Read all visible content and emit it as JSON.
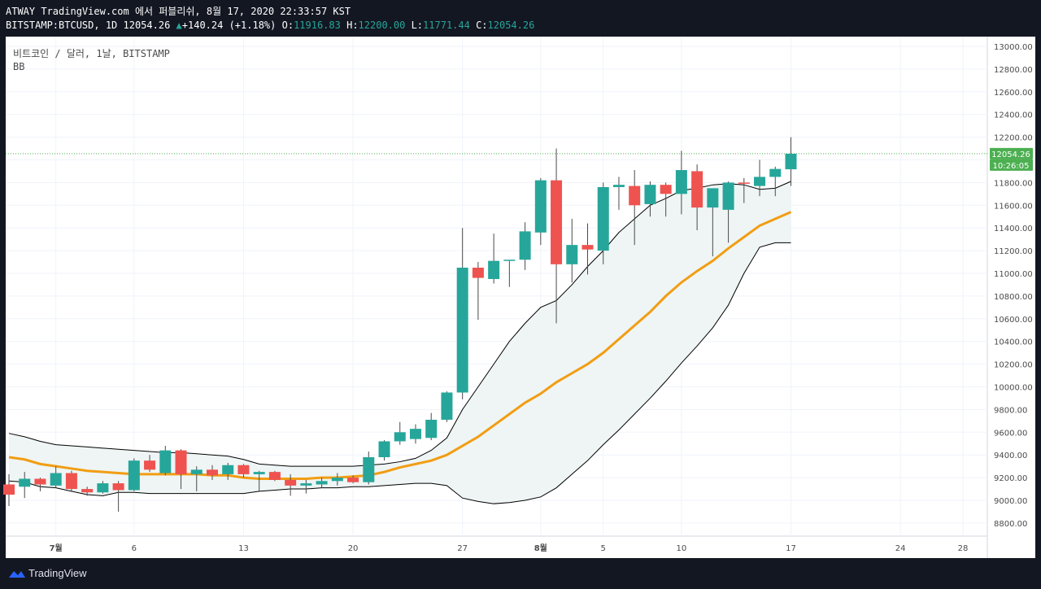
{
  "header": {
    "line1": "ATWAY TradingView.com 에서 퍼블리쉬, 8월 17, 2020 22:33:57 KST",
    "symbol": "BITSTAMP:BTCUSD, 1D",
    "price": "12054.26",
    "change": "+140.24 (+1.18%)",
    "o_label": "O:",
    "o_value": "11916.83",
    "h_label": "H:",
    "h_value": "12200.00",
    "l_label": "L:",
    "l_value": "11771.44",
    "c_label": "C:",
    "c_value": "12054.26"
  },
  "legend": {
    "title": "비트코인 / 달러, 1날, BITSTAMP",
    "indicator": "BB"
  },
  "footer": {
    "brand": "TradingView"
  },
  "colors": {
    "up": "#26a69a",
    "down": "#ef5350",
    "basis": "#f29d13",
    "band": "#000000",
    "fill": "#eef5f4",
    "price_tag": "#4caf50"
  },
  "chart_data": {
    "type": "candlestick",
    "title": "비트코인 / 달러, 1날, BITSTAMP",
    "y_range": [
      8700,
      13100
    ],
    "y_ticks": [
      "13000.00",
      "12800.00",
      "12600.00",
      "12400.00",
      "12200.00",
      "12000.00",
      "11800.00",
      "11600.00",
      "11400.00",
      "11200.00",
      "11000.00",
      "10800.00",
      "10600.00",
      "10400.00",
      "10200.00",
      "10000.00",
      "9800.00",
      "9600.00",
      "9400.00",
      "9200.00",
      "9000.00",
      "8800.00"
    ],
    "x_ticks": [
      {
        "label": "7월",
        "bar": 3.0,
        "bold": true
      },
      {
        "label": "6",
        "bar": 8
      },
      {
        "label": "13",
        "bar": 15
      },
      {
        "label": "20",
        "bar": 22
      },
      {
        "label": "27",
        "bar": 29
      },
      {
        "label": "8월",
        "bar": 34.0,
        "bold": true
      },
      {
        "label": "5",
        "bar": 38
      },
      {
        "label": "10",
        "bar": 43
      },
      {
        "label": "17",
        "bar": 50
      },
      {
        "label": "24",
        "bar": 57
      },
      {
        "label": "28",
        "bar": 61
      }
    ],
    "price_tag": "12054.26",
    "countdown": "10:26:05",
    "candles": [
      [
        9140,
        9230,
        8950,
        9050
      ],
      [
        9120,
        9250,
        9020,
        9190
      ],
      [
        9190,
        9200,
        9080,
        9140
      ],
      [
        9130,
        9300,
        9110,
        9240
      ],
      [
        9240,
        9260,
        9080,
        9100
      ],
      [
        9100,
        9120,
        9040,
        9070
      ],
      [
        9070,
        9170,
        9060,
        9150
      ],
      [
        9150,
        9170,
        8900,
        9090
      ],
      [
        9090,
        9370,
        9080,
        9350
      ],
      [
        9350,
        9400,
        9250,
        9270
      ],
      [
        9240,
        9480,
        9220,
        9440
      ],
      [
        9440,
        9450,
        9100,
        9230
      ],
      [
        9230,
        9300,
        9080,
        9270
      ],
      [
        9270,
        9310,
        9180,
        9220
      ],
      [
        9230,
        9330,
        9180,
        9310
      ],
      [
        9310,
        9320,
        9200,
        9230
      ],
      [
        9230,
        9260,
        9080,
        9250
      ],
      [
        9250,
        9260,
        9170,
        9180
      ],
      [
        9180,
        9230,
        9040,
        9130
      ],
      [
        9130,
        9180,
        9060,
        9150
      ],
      [
        9140,
        9200,
        9110,
        9170
      ],
      [
        9170,
        9240,
        9130,
        9200
      ],
      [
        9200,
        9220,
        9150,
        9160
      ],
      [
        9160,
        9430,
        9140,
        9380
      ],
      [
        9380,
        9530,
        9350,
        9520
      ],
      [
        9520,
        9690,
        9490,
        9600
      ],
      [
        9540,
        9670,
        9500,
        9630
      ],
      [
        9550,
        9770,
        9530,
        9710
      ],
      [
        9710,
        9960,
        9690,
        9950
      ],
      [
        9950,
        11400,
        9890,
        11050
      ],
      [
        11050,
        11100,
        10590,
        10960
      ],
      [
        10950,
        11350,
        10910,
        11110
      ],
      [
        11110,
        11110,
        10880,
        11120
      ],
      [
        11120,
        11450,
        11030,
        11370
      ],
      [
        11360,
        11840,
        11250,
        11820
      ],
      [
        11820,
        12100,
        10560,
        11080
      ],
      [
        11080,
        11480,
        10920,
        11250
      ],
      [
        11250,
        11440,
        10990,
        11210
      ],
      [
        11200,
        11800,
        11080,
        11760
      ],
      [
        11760,
        11850,
        11560,
        11780
      ],
      [
        11770,
        11910,
        11250,
        11600
      ],
      [
        11610,
        11810,
        11500,
        11780
      ],
      [
        11780,
        11800,
        11500,
        11700
      ],
      [
        11700,
        12080,
        11520,
        11910
      ],
      [
        11900,
        11960,
        11380,
        11580
      ],
      [
        11580,
        11720,
        11150,
        11750
      ],
      [
        11560,
        11810,
        11270,
        11800
      ],
      [
        11800,
        11840,
        11620,
        11790
      ],
      [
        11770,
        12000,
        11680,
        11850
      ],
      [
        11850,
        11940,
        11680,
        11920
      ],
      [
        11917,
        12200,
        11771,
        12054
      ]
    ],
    "bb_upper": [
      9590,
      9560,
      9520,
      9490,
      9480,
      9470,
      9460,
      9450,
      9440,
      9430,
      9420,
      9420,
      9410,
      9400,
      9390,
      9360,
      9320,
      9310,
      9300,
      9300,
      9300,
      9300,
      9300,
      9310,
      9320,
      9340,
      9370,
      9440,
      9550,
      9800,
      10000,
      10200,
      10400,
      10560,
      10700,
      10760,
      10900,
      11060,
      11200,
      11360,
      11480,
      11600,
      11660,
      11730,
      11750,
      11780,
      11790,
      11780,
      11740,
      11750,
      11810
    ],
    "bb_basis": [
      9380,
      9360,
      9320,
      9300,
      9280,
      9260,
      9250,
      9240,
      9230,
      9230,
      9230,
      9230,
      9230,
      9220,
      9220,
      9200,
      9190,
      9190,
      9190,
      9190,
      9200,
      9200,
      9210,
      9220,
      9250,
      9290,
      9320,
      9350,
      9400,
      9480,
      9560,
      9660,
      9760,
      9860,
      9940,
      10040,
      10120,
      10200,
      10300,
      10420,
      10540,
      10660,
      10800,
      10920,
      11020,
      11110,
      11220,
      11320,
      11420,
      11480,
      11540
    ],
    "bb_lower": [
      9170,
      9160,
      9120,
      9110,
      9080,
      9050,
      9040,
      9070,
      9070,
      9060,
      9060,
      9060,
      9060,
      9060,
      9060,
      9060,
      9080,
      9090,
      9100,
      9100,
      9110,
      9110,
      9120,
      9120,
      9130,
      9140,
      9150,
      9150,
      9130,
      9020,
      8990,
      8970,
      8980,
      9000,
      9030,
      9110,
      9230,
      9350,
      9490,
      9620,
      9760,
      9900,
      10050,
      10210,
      10360,
      10520,
      10720,
      11000,
      11230,
      11270,
      11270
    ]
  }
}
